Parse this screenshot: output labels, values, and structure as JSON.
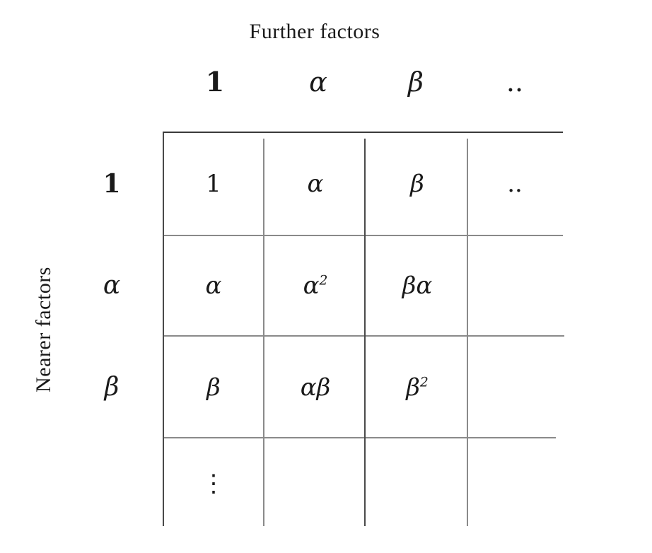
{
  "titles": {
    "top": "Further factors",
    "side": "Nearer factors"
  },
  "column_headers": [
    "1",
    "α",
    "β",
    ".."
  ],
  "row_headers": [
    "1",
    "α",
    "β"
  ],
  "cells": {
    "r1": [
      "1",
      "α",
      "β",
      ".."
    ],
    "r2": [
      "α",
      "α",
      "βα",
      ""
    ],
    "r3": [
      "β",
      "αβ",
      "β",
      ""
    ],
    "r4": [
      "⋮",
      "",
      "",
      ""
    ]
  },
  "exponents": {
    "r2c2": "2",
    "r3c3": "2"
  }
}
